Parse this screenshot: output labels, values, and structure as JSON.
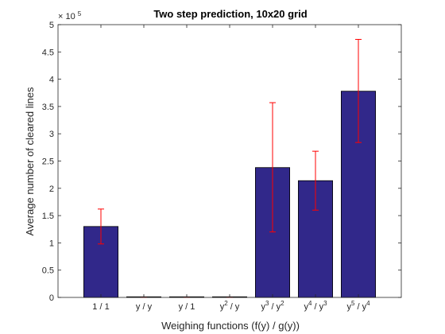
{
  "chart_data": {
    "type": "bar",
    "title": "Two step prediction, 10x20 grid",
    "xlabel": "Weighing functions (f(y) / g(y))",
    "ylabel": "Average number of cleared lines",
    "y_multiplier_label": "× 10",
    "y_multiplier_exponent": "5",
    "y_multiplier": 100000,
    "ylim": [
      0,
      500000
    ],
    "yticks": [
      0,
      50000,
      100000,
      150000,
      200000,
      250000,
      300000,
      350000,
      400000,
      450000,
      500000
    ],
    "ytick_labels": [
      "0",
      "0.5",
      "1",
      "1.5",
      "2",
      "2.5",
      "3",
      "3.5",
      "4",
      "4.5",
      "5"
    ],
    "categories": [
      {
        "base": "1 / 1",
        "parts": [
          [
            "1 / 1",
            ""
          ]
        ]
      },
      {
        "base": "y / y",
        "parts": [
          [
            "y / y",
            ""
          ]
        ]
      },
      {
        "base": "y / 1",
        "parts": [
          [
            "y / 1",
            ""
          ]
        ]
      },
      {
        "base": "y2 / y",
        "parts": [
          [
            "y",
            "2"
          ],
          [
            " / y",
            ""
          ]
        ]
      },
      {
        "base": "y3 / y2",
        "parts": [
          [
            "y",
            "3"
          ],
          [
            " / y",
            "2"
          ]
        ]
      },
      {
        "base": "y4 / y3",
        "parts": [
          [
            "y",
            "4"
          ],
          [
            " / y",
            "3"
          ]
        ]
      },
      {
        "base": "y5 / y4",
        "parts": [
          [
            "y",
            "5"
          ],
          [
            " / y",
            "4"
          ]
        ]
      }
    ],
    "values": [
      130000,
      0,
      0,
      0,
      238000,
      214000,
      378000
    ],
    "error_low": [
      98000,
      0,
      0,
      0,
      120000,
      160000,
      284000
    ],
    "error_high": [
      162000,
      0,
      0,
      0,
      357000,
      268000,
      473000
    ],
    "colors": {
      "bar": "#31288a",
      "bar_edge": "#000000",
      "error": "#ff0000",
      "axis": "#262626"
    },
    "grid": false,
    "legend": "none"
  }
}
